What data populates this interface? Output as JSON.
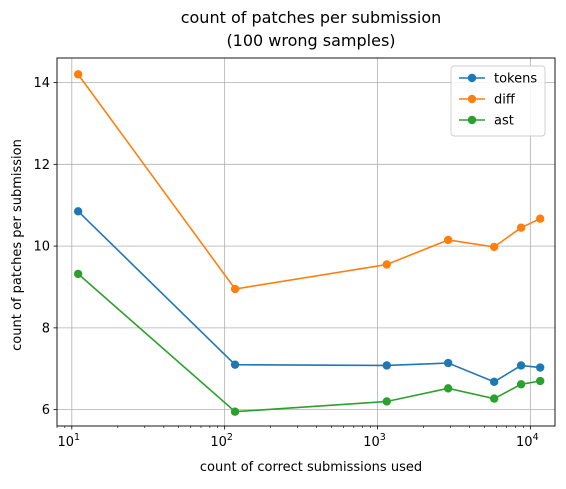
{
  "chart_data": {
    "type": "line",
    "title": [
      "count of patches per submission",
      "(100 wrong samples)"
    ],
    "xlabel": "count of correct submissions used",
    "ylabel": "count of patches per submission",
    "xscale": "log",
    "xlim": [
      8,
      14500
    ],
    "ylim": [
      5.6,
      14.6
    ],
    "xticks": [
      {
        "base": "10",
        "exp": "1",
        "value": 10
      },
      {
        "base": "10",
        "exp": "2",
        "value": 100
      },
      {
        "base": "10",
        "exp": "3",
        "value": 1000
      },
      {
        "base": "10",
        "exp": "4",
        "value": 10000
      }
    ],
    "yticks": [
      6,
      8,
      10,
      12,
      14
    ],
    "grid": true,
    "legend_position": "top-right",
    "x": [
      11,
      117,
      1150,
      2900,
      5800,
      8700,
      11600
    ],
    "series": [
      {
        "name": "tokens",
        "color": "#1f77b4",
        "values": [
          10.85,
          7.1,
          7.08,
          7.14,
          6.68,
          7.08,
          7.03
        ]
      },
      {
        "name": "diff",
        "color": "#ff7f0e",
        "values": [
          14.2,
          8.95,
          9.55,
          10.15,
          9.98,
          10.45,
          10.67
        ]
      },
      {
        "name": "ast",
        "color": "#2ca02c",
        "values": [
          9.32,
          5.95,
          6.2,
          6.52,
          6.27,
          6.62,
          6.7
        ]
      }
    ]
  }
}
